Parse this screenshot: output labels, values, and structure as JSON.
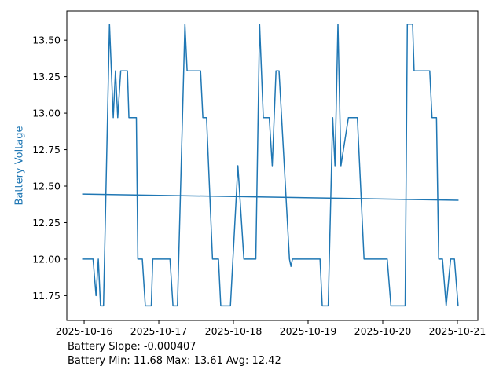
{
  "figure": {
    "background": "#ffffff",
    "axis_color": "#000000",
    "line_color": "#1f77b4",
    "ylabel": "Battery Voltage",
    "ylabel_color": "#1f77b4",
    "footer_lines": [
      "Battery Slope: -0.000407",
      "Battery Min: 11.68 Max: 13.61 Avg: 12.42"
    ]
  },
  "chart_data": {
    "type": "line",
    "title": "",
    "xlabel": "",
    "ylabel": "Battery Voltage",
    "grid": false,
    "legend": null,
    "x_unit": "days since 2025-10-16 00:00",
    "xlim": [
      -0.232,
      5.274
    ],
    "ylim": [
      11.58,
      13.7
    ],
    "x_tick_positions": [
      0,
      1,
      2,
      3,
      4,
      5
    ],
    "x_tick_labels": [
      "2025-10-16",
      "2025-10-17",
      "2025-10-18",
      "2025-10-19",
      "2025-10-20",
      "2025-10-21"
    ],
    "y_ticks": [
      11.75,
      12.0,
      12.25,
      12.5,
      12.75,
      13.0,
      13.25,
      13.5
    ],
    "annotations": {
      "slope": -0.000407,
      "min": 11.68,
      "max": 13.61,
      "avg": 12.42
    },
    "series": [
      {
        "name": "battery_voltage",
        "color": "#1f77b4",
        "points": [
          [
            -0.02,
            12.0
          ],
          [
            0.12,
            12.0
          ],
          [
            0.16,
            11.75
          ],
          [
            0.19,
            12.0
          ],
          [
            0.22,
            11.68
          ],
          [
            0.26,
            11.68
          ],
          [
            0.34,
            13.61
          ],
          [
            0.39,
            12.97
          ],
          [
            0.42,
            13.29
          ],
          [
            0.45,
            12.97
          ],
          [
            0.49,
            13.29
          ],
          [
            0.58,
            13.29
          ],
          [
            0.6,
            12.97
          ],
          [
            0.7,
            12.97
          ],
          [
            0.72,
            12.0
          ],
          [
            0.78,
            12.0
          ],
          [
            0.82,
            11.68
          ],
          [
            0.9,
            11.68
          ],
          [
            0.92,
            12.0
          ],
          [
            1.15,
            12.0
          ],
          [
            1.19,
            11.68
          ],
          [
            1.25,
            11.68
          ],
          [
            1.35,
            13.61
          ],
          [
            1.38,
            13.29
          ],
          [
            1.56,
            13.29
          ],
          [
            1.59,
            12.97
          ],
          [
            1.64,
            12.97
          ],
          [
            1.72,
            12.0
          ],
          [
            1.8,
            12.0
          ],
          [
            1.83,
            11.68
          ],
          [
            1.96,
            11.68
          ],
          [
            2.06,
            12.64
          ],
          [
            2.14,
            12.0
          ],
          [
            2.3,
            12.0
          ],
          [
            2.35,
            13.61
          ],
          [
            2.4,
            12.97
          ],
          [
            2.48,
            12.97
          ],
          [
            2.52,
            12.64
          ],
          [
            2.57,
            13.29
          ],
          [
            2.61,
            13.29
          ],
          [
            2.75,
            12.0
          ],
          [
            2.77,
            11.95
          ],
          [
            2.79,
            12.0
          ],
          [
            3.16,
            12.0
          ],
          [
            3.19,
            11.68
          ],
          [
            3.27,
            11.68
          ],
          [
            3.33,
            12.97
          ],
          [
            3.36,
            12.64
          ],
          [
            3.4,
            13.61
          ],
          [
            3.44,
            12.64
          ],
          [
            3.54,
            12.97
          ],
          [
            3.66,
            12.97
          ],
          [
            3.75,
            12.0
          ],
          [
            4.06,
            12.0
          ],
          [
            4.11,
            11.68
          ],
          [
            4.3,
            11.68
          ],
          [
            4.33,
            13.61
          ],
          [
            4.4,
            13.61
          ],
          [
            4.42,
            13.29
          ],
          [
            4.63,
            13.29
          ],
          [
            4.66,
            12.97
          ],
          [
            4.72,
            12.97
          ],
          [
            4.75,
            12.0
          ],
          [
            4.8,
            12.0
          ],
          [
            4.85,
            11.68
          ],
          [
            4.91,
            12.0
          ],
          [
            4.96,
            12.0
          ],
          [
            5.01,
            11.68
          ]
        ]
      },
      {
        "name": "battery_trend",
        "color": "#1f77b4",
        "points": [
          [
            -0.02,
            12.446
          ],
          [
            5.01,
            12.403
          ]
        ]
      }
    ]
  }
}
